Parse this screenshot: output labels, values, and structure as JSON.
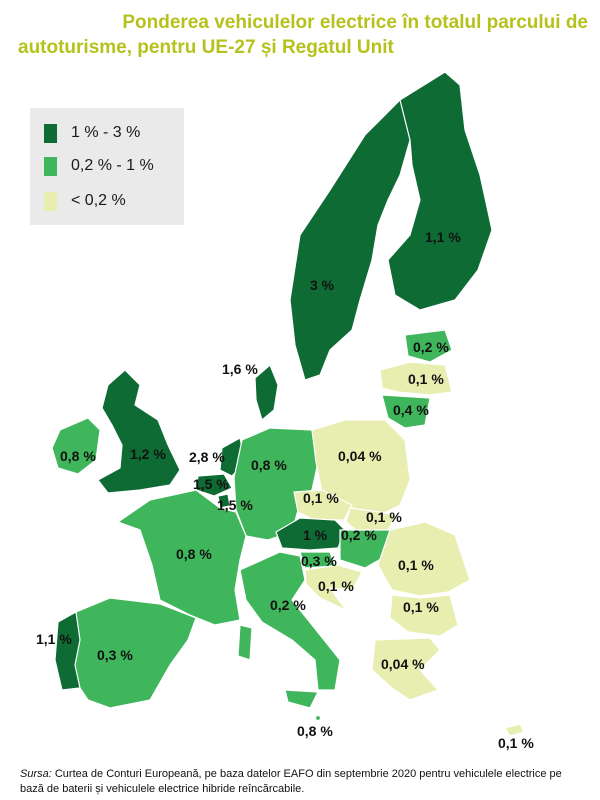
{
  "title": {
    "line1": "Ponderea vehiculelor electrice în totalul parcului de",
    "line2": "autoturisme, pentru UE-27 și Regatul Unit"
  },
  "colors": {
    "dark": "#0f6b34",
    "mid": "#3fb55c",
    "light": "#e7eeb0",
    "title": "#b5c21b"
  },
  "legend": [
    {
      "label": "1 % - 3 %",
      "color": "#0f6b34"
    },
    {
      "label": "0,2 % - 1 %",
      "color": "#3fb55c"
    },
    {
      "label": "< 0,2 %",
      "color": "#e7eeb0"
    }
  ],
  "regions": {
    "sweden": "3 %",
    "finland": "1,1 %",
    "estonia": "0,2 %",
    "latvia": "0,1 %",
    "lithuania": "0,4 %",
    "denmark": "1,6 %",
    "ireland": "0,8 %",
    "uk": "1,2 %",
    "netherlands": "2,8 %",
    "belgium": "1,5 %",
    "luxembourg": "1,5 %",
    "germany": "0,8 %",
    "poland": "0,04 %",
    "czechia": "0,1 %",
    "slovakia": "0,1 %",
    "austria": "1 %",
    "hungary": "0,2 %",
    "slovenia": "0,3 %",
    "croatia": "0,1 %",
    "france": "0,8 %",
    "romania": "0,1 %",
    "bulgaria": "0,1 %",
    "greece": "0,04 %",
    "italy": "0,2 %",
    "portugal": "1,1 %",
    "spain": "0,3 %",
    "malta": "0,8 %",
    "cyprus": "0,1 %"
  },
  "source": {
    "label": "Sursa:",
    "text": " Curtea de Conturi Europeană, pe baza datelor EAFO din septembrie 2020 pentru vehiculele electrice pe bază de baterii și vehiculele electrice hibride reîncărcabile."
  }
}
